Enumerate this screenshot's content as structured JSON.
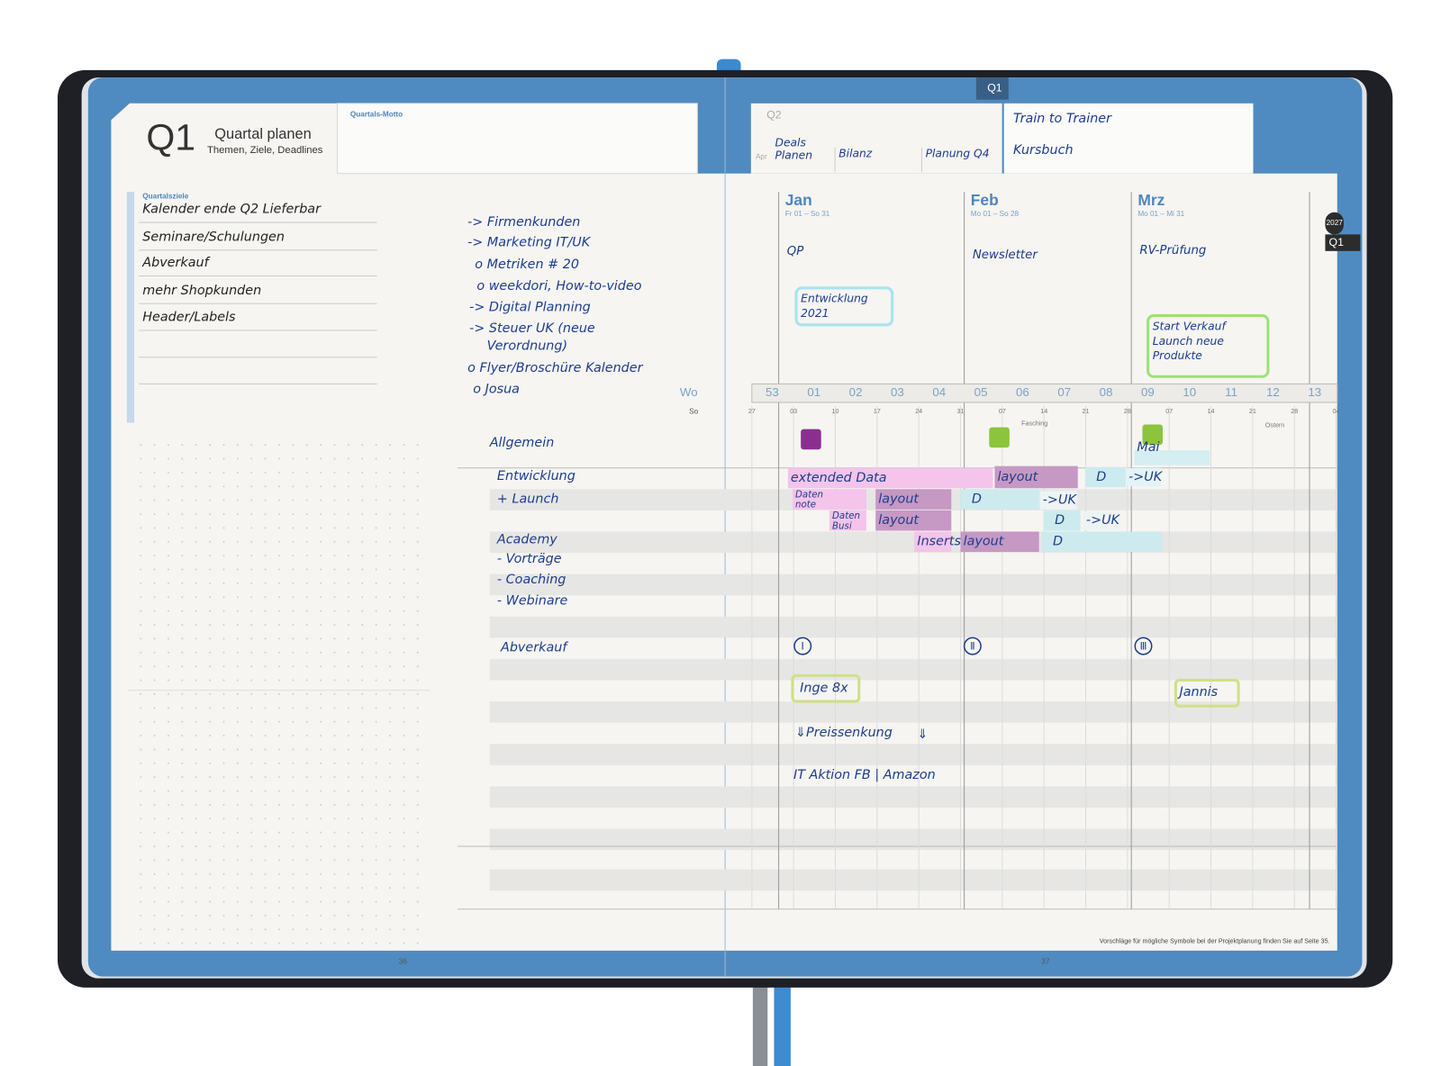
{
  "left_page": {
    "header": {
      "title": "Q1",
      "subtitle": "Quartal planen",
      "caption": "Themen, Ziele, Deadlines"
    },
    "motto_label": "Quartals-Motto",
    "goals": {
      "label": "Quartalsziele",
      "items": [
        "Kalender ende Q2 Lieferbar",
        "Seminare/Schulungen",
        "Abverkauf",
        "mehr Shopkunden",
        "Header/Labels"
      ]
    },
    "notes": [
      "-> Firmenkunden",
      "-> Marketing IT/UK",
      "o Metriken # 20",
      "o weekdori, How-to-video",
      "-> Digital Planning",
      "-> Steuer UK (neue",
      "Verordnung)",
      "o Flyer/Broschüre Kalender",
      "o Josua"
    ],
    "page_number": "36"
  },
  "right_page": {
    "tab": "Q1",
    "q2": {
      "label": "Q2",
      "month": "Apr",
      "items": [
        [
          "Deals",
          "Planen"
        ],
        [
          "Bilanz"
        ],
        [
          "Planung Q4"
        ]
      ]
    },
    "motto_notes": [
      "Train to Trainer",
      "Kursbuch"
    ],
    "side_tabs": [
      "2027",
      "Q1"
    ],
    "months": [
      {
        "name": "Jan",
        "range": "Fr 01 – So 31",
        "note": "QP"
      },
      {
        "name": "Feb",
        "range": "Mo 01 – So 28",
        "note": "Newsletter"
      },
      {
        "name": "Mrz",
        "range": "Mo 01 – Mi 31",
        "note": "RV-Prüfung"
      }
    ],
    "month_boxes": [
      {
        "lines": [
          "Entwicklung",
          "2021"
        ],
        "color": "#a9e3ee"
      },
      {
        "lines": [
          "Start Verkauf",
          "Launch neue",
          "Produkte"
        ],
        "color": "#9ee07a"
      }
    ],
    "week_label": "Wo",
    "weeks": [
      "53",
      "01",
      "02",
      "03",
      "04",
      "05",
      "06",
      "07",
      "08",
      "09",
      "10",
      "11",
      "12",
      "13"
    ],
    "day_label": "So",
    "days": [
      "27",
      "03",
      "10",
      "17",
      "24",
      "31",
      "07",
      "14",
      "21",
      "28",
      "07",
      "14",
      "21",
      "28",
      "04"
    ],
    "holidays": [
      "Fasching",
      "Ostern"
    ],
    "rows": [
      "Allgemein",
      "Entwicklung",
      "+ Launch",
      "Academy",
      "- Vorträge",
      "- Coaching",
      "- Webinare",
      "Abverkauf"
    ],
    "bars": [
      {
        "lines": [
          "extended Data"
        ],
        "color": "#f4c4ea"
      },
      {
        "lines": [
          "layout"
        ],
        "color": "#c698c4"
      },
      {
        "lines": [
          "D"
        ],
        "color": "#cdebef"
      },
      {
        "lines": [
          "->UK"
        ],
        "color": "#e4f3f5"
      },
      {
        "lines": [
          "Daten",
          "note"
        ],
        "color": "#f4c4ea"
      },
      {
        "lines": [
          "layout"
        ],
        "color": "#c698c4"
      },
      {
        "lines": [
          "D"
        ],
        "color": "#cdebef"
      },
      {
        "lines": [
          "->UK"
        ],
        "color": "#eef3f3"
      },
      {
        "lines": [
          "Daten",
          "Busi"
        ],
        "color": "#f4c4ea"
      },
      {
        "lines": [
          "layout"
        ],
        "color": "#c698c4"
      },
      {
        "lines": [
          "D"
        ],
        "color": "#cdebef"
      },
      {
        "lines": [
          "->UK"
        ],
        "color": "#eef3f3"
      },
      {
        "lines": [
          "Inserts"
        ],
        "color": "#f4c4ea"
      },
      {
        "lines": [
          "layout"
        ],
        "color": "#c698c4"
      },
      {
        "lines": [
          "D"
        ],
        "color": "#cdebef"
      },
      {
        "lines": [
          "Mai"
        ],
        "color": "#d4eef2"
      }
    ],
    "milestones": [
      "Ⅰ",
      "Ⅱ",
      "Ⅲ"
    ],
    "entries": [
      {
        "text": "Inge 8x",
        "box": "#cfe08a"
      },
      {
        "text": "Jannis",
        "box": "#cfe08a"
      },
      {
        "text": "⇓Preissenkung",
        "box": null
      },
      {
        "text": "⇓",
        "box": null
      },
      {
        "text": "IT Aktion FB | Amazon",
        "box": null
      }
    ],
    "footnote": "Vorschläge für mögliche Symbole bei der Projektplanung finden Sie auf Seite 35.",
    "page_number": "37"
  }
}
